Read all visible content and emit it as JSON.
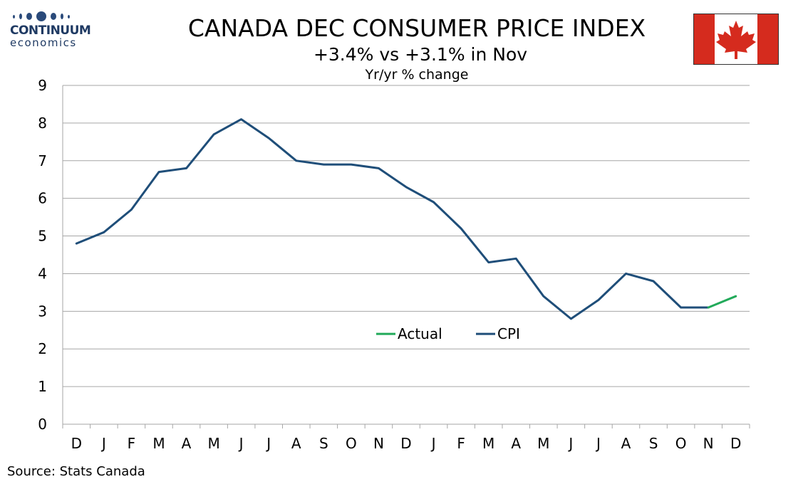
{
  "logo": {
    "name": "CONTINUUM",
    "tagline": "economics"
  },
  "header": {
    "title": "CANADA DEC CONSUMER PRICE INDEX",
    "subtitle": "+3.4% vs +3.1% in Nov",
    "unit": "Yr/yr % change"
  },
  "flag": {
    "icon": "canada-flag-icon",
    "red": "#d52b1e",
    "white": "#ffffff"
  },
  "source": "Source: Stats Canada",
  "chart_data": {
    "type": "line",
    "categories": [
      "D",
      "J",
      "F",
      "M",
      "A",
      "M",
      "J",
      "J",
      "A",
      "S",
      "O",
      "N",
      "D",
      "J",
      "F",
      "M",
      "A",
      "M",
      "J",
      "J",
      "A",
      "S",
      "O",
      "N",
      "D"
    ],
    "series": [
      {
        "name": "CPI",
        "color": "#1f4e79",
        "values": [
          4.8,
          5.1,
          5.7,
          6.7,
          6.8,
          7.7,
          8.1,
          7.6,
          7.0,
          6.9,
          6.9,
          6.8,
          6.3,
          5.9,
          5.2,
          4.3,
          4.4,
          3.4,
          2.8,
          3.3,
          4.0,
          3.8,
          3.1,
          3.1,
          null
        ]
      },
      {
        "name": "Actual",
        "color": "#22aa5a",
        "values": [
          null,
          null,
          null,
          null,
          null,
          null,
          null,
          null,
          null,
          null,
          null,
          null,
          null,
          null,
          null,
          null,
          null,
          null,
          null,
          null,
          null,
          null,
          null,
          3.1,
          3.4
        ]
      }
    ],
    "legend": [
      "Actual",
      "CPI"
    ],
    "legend_position": "lower-center",
    "ylim": [
      0,
      9
    ],
    "yticks": [
      0,
      1,
      2,
      3,
      4,
      5,
      6,
      7,
      8,
      9
    ],
    "grid": true
  }
}
